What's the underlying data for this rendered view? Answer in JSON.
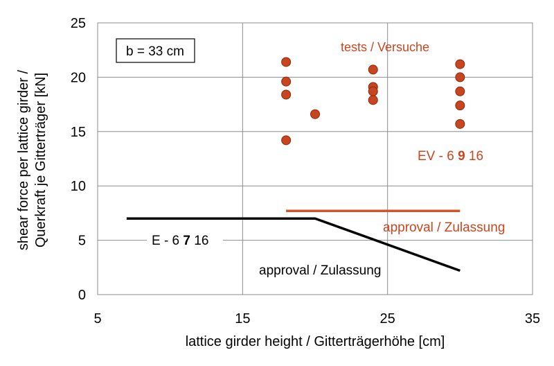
{
  "chart_data": {
    "type": "scatter",
    "xlabel": "lattice girder height / Gitterträgerhöhe [cm]",
    "ylabel_line1": "shear force per lattice girder /",
    "ylabel_line2": "Querkraft je Gitterträger [kN]",
    "xlim": [
      5,
      35
    ],
    "ylim": [
      0,
      25
    ],
    "x_ticks": [
      5,
      15,
      25,
      35
    ],
    "y_ticks": [
      0,
      5,
      10,
      15,
      20,
      25
    ],
    "x_tick_labels": [
      "5",
      "15",
      "25",
      "35"
    ],
    "y_tick_labels": [
      "0",
      "5",
      "10",
      "15",
      "20",
      "25"
    ],
    "grid": true,
    "colors": {
      "tests": "#c8461f",
      "approval_ev": "#d2542a",
      "approval_e": "#000000",
      "grid": "#8c8c8c"
    },
    "series": [
      {
        "name": "tests / Versuche",
        "kind": "points",
        "x": [
          18,
          18,
          18,
          18,
          20,
          24,
          24,
          24,
          24,
          30,
          30,
          30,
          30,
          30
        ],
        "y": [
          21.4,
          19.6,
          18.4,
          14.2,
          16.6,
          20.7,
          19.1,
          18.7,
          17.9,
          21.2,
          20.0,
          18.7,
          17.4,
          15.7
        ]
      },
      {
        "name": "approval / Zulassung",
        "kind": "line",
        "x": [
          18,
          30
        ],
        "y": [
          7.7,
          7.7
        ]
      },
      {
        "name": "approval / Zulassung",
        "kind": "line",
        "x": [
          7,
          20,
          30
        ],
        "y": [
          7.0,
          7.0,
          2.2
        ]
      }
    ],
    "annotations": {
      "box": "b = 33 cm",
      "tests": "tests / Versuche",
      "ev_prefix": "EV - 6 ",
      "ev_bold": "9",
      "ev_suffix": " 16",
      "approval_ev": "approval / Zulassung",
      "e_prefix": "E - 6 ",
      "e_bold": "7",
      "e_suffix": " 16",
      "approval_e": "approval / Zulassung"
    }
  }
}
